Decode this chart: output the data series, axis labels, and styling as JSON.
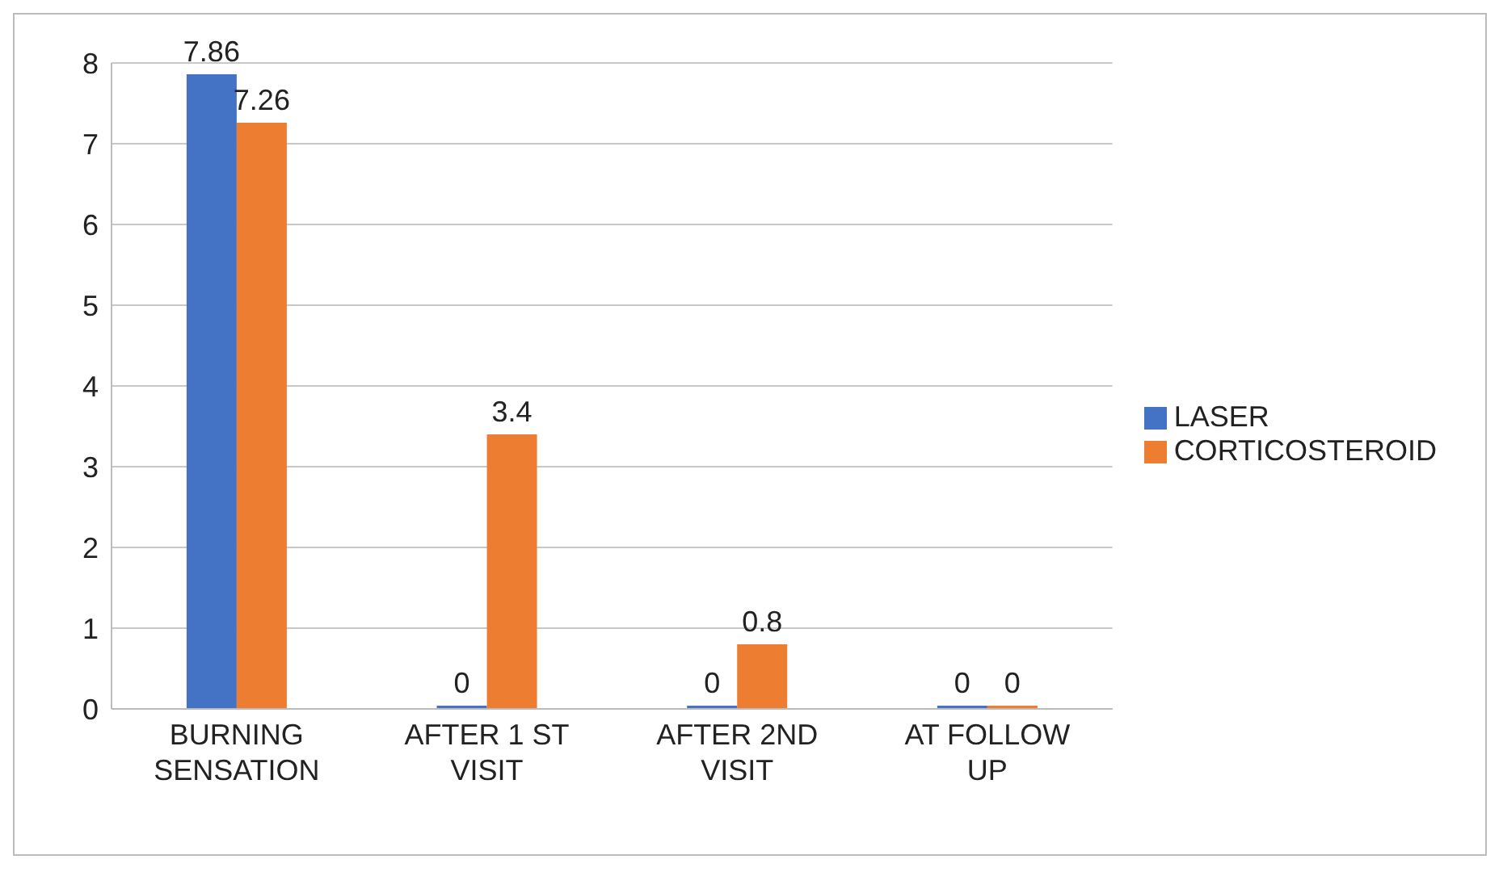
{
  "chart_data": {
    "type": "bar",
    "categories": [
      "BURNING SENSATION",
      "AFTER 1 ST VISIT",
      "AFTER 2ND VISIT",
      "AT FOLLOW UP"
    ],
    "series": [
      {
        "name": "LASER",
        "color": "#4472c4",
        "values": [
          7.86,
          0,
          0,
          0
        ]
      },
      {
        "name": "CORTICOSTEROID",
        "color": "#ed7d31",
        "values": [
          7.26,
          3.4,
          0.8,
          0
        ]
      }
    ],
    "ylim": [
      0,
      8
    ],
    "yticks": [
      0,
      1,
      2,
      3,
      4,
      5,
      6,
      7,
      8
    ],
    "grid": "y",
    "legend": "right",
    "data_labels": true
  }
}
